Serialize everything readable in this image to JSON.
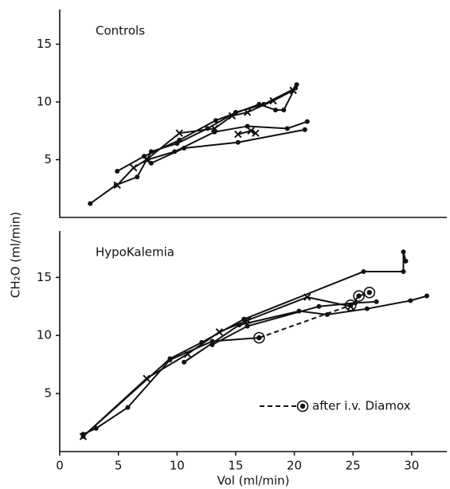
{
  "chart_data": [
    {
      "type": "line",
      "title": "Controls",
      "xlim": [
        0,
        33
      ],
      "ylim": [
        0,
        18
      ],
      "yticks": [
        5,
        10,
        15
      ],
      "series": [
        {
          "color": "#111",
          "marker": "dot",
          "line": "solid",
          "x": [
            2.6,
            4.8,
            6.6,
            7.8,
            10,
            12.6,
            15,
            17.4,
            20.1
          ],
          "values": [
            1.2,
            2.8,
            3.5,
            5.7,
            6.4,
            7.7,
            9.1,
            9.8,
            11.2
          ]
        },
        {
          "color": "#111",
          "marker": "dot",
          "line": "solid",
          "x": [
            4.9,
            7.2,
            10.2,
            13.3,
            17,
            18.4,
            19.1,
            20.2
          ],
          "values": [
            4.0,
            5.3,
            6.7,
            8.4,
            9.8,
            9.3,
            9.3,
            11.5
          ]
        },
        {
          "color": "#111",
          "marker": "x",
          "line": "solid",
          "x": [
            4.9,
            6.3,
            7.4,
            10.2,
            13.2,
            14.7,
            16,
            18.2,
            19.9
          ],
          "values": [
            2.8,
            4.3,
            5.0,
            7.3,
            7.7,
            8.8,
            9.1,
            10.1,
            11.0
          ]
        },
        {
          "color": "#111",
          "marker": "dot",
          "line": "solid",
          "x": [
            7.5,
            9.8,
            13.2,
            16,
            19.4,
            21.1
          ],
          "values": [
            5.0,
            5.7,
            7.4,
            7.9,
            7.7,
            8.3
          ]
        },
        {
          "color": "#111",
          "marker": "dot",
          "line": "solid",
          "x": [
            7.8,
            10.6,
            15.2,
            20.9
          ],
          "values": [
            4.7,
            6.0,
            6.5,
            7.6
          ]
        },
        {
          "color": "#111",
          "marker": "x",
          "line": "solid",
          "x": [
            15.2,
            16.3,
            16.7
          ],
          "values": [
            7.2,
            7.5,
            7.3
          ]
        }
      ]
    },
    {
      "type": "line",
      "title": "HypoKalemia",
      "xlim": [
        0,
        33
      ],
      "ylim": [
        0,
        19
      ],
      "yticks": [
        5,
        10,
        15
      ],
      "xticks": [
        0,
        5,
        10,
        15,
        20,
        25,
        30
      ],
      "legend": "lower right",
      "series": [
        {
          "color": "#111",
          "marker": "dot",
          "line": "solid",
          "x": [
            2,
            3.1,
            5.8,
            9.4,
            13,
            17
          ],
          "values": [
            1.5,
            2.0,
            3.8,
            7.9,
            9.5,
            9.8
          ]
        },
        {
          "color": "#111",
          "marker": "x",
          "line": "solid",
          "x": [
            2,
            7.4,
            10.9,
            13.6,
            16,
            21.1,
            24.8
          ],
          "values": [
            1.3,
            6.3,
            8.4,
            10.3,
            11.3,
            13.3,
            12.5
          ]
        },
        {
          "color": "#111",
          "marker": "dot",
          "line": "solid",
          "x": [
            2,
            9.4,
            12.1,
            15.7,
            25.9,
            29.3,
            29.3,
            29.5
          ],
          "values": [
            1.3,
            8.0,
            9.4,
            11.4,
            15.5,
            15.5,
            17.2,
            16.4
          ]
        },
        {
          "color": "#111",
          "marker": "dot",
          "line": "solid",
          "x": [
            10.6,
            15.3,
            20.4,
            22.8,
            26.2,
            29.9,
            31.3
          ],
          "values": [
            7.7,
            10.9,
            12.1,
            11.8,
            12.3,
            13.0,
            13.4
          ]
        },
        {
          "color": "#111",
          "marker": "dot",
          "line": "solid",
          "x": [
            13,
            16,
            22.1,
            25.2,
            27
          ],
          "values": [
            9.2,
            10.8,
            12.5,
            12.8,
            12.9
          ]
        },
        {
          "name": "after i.v. Diamox",
          "color": "#111",
          "marker": "circled",
          "line": "dashed",
          "x": [
            17,
            24.8,
            25.5,
            26.4
          ],
          "values": [
            9.8,
            12.6,
            13.4,
            13.7
          ]
        }
      ]
    }
  ],
  "xlabel": "Vol (ml/min)",
  "ylabel": "CH₂O (ml/min)"
}
